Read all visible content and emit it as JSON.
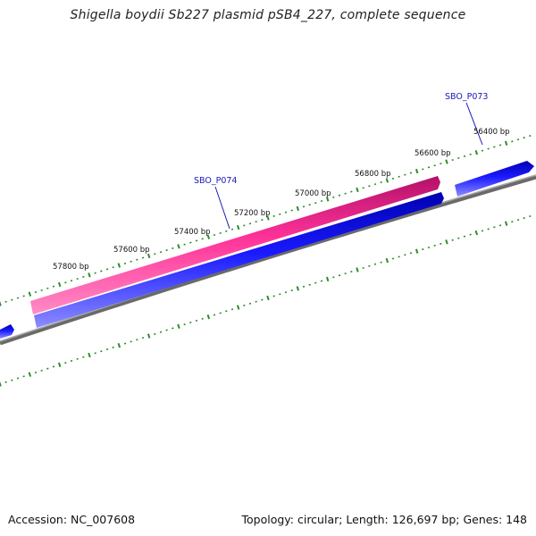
{
  "title": "Shigella boydii Sb227 plasmid pSB4_227, complete sequence",
  "footer": {
    "accession": "Accession: NC_007608",
    "summary": "Topology: circular; Length: 126,697 bp; Genes: 148"
  },
  "map": {
    "ticks": [
      {
        "bp": 56400,
        "label": "56400 bp"
      },
      {
        "bp": 56600,
        "label": "56600 bp"
      },
      {
        "bp": 56800,
        "label": "56800 bp"
      },
      {
        "bp": 57000,
        "label": "57000 bp"
      },
      {
        "bp": 57200,
        "label": "57200 bp"
      },
      {
        "bp": 57400,
        "label": "57400 bp"
      },
      {
        "bp": 57600,
        "label": "57600 bp"
      },
      {
        "bp": 57800,
        "label": "57800 bp"
      }
    ],
    "genes": [
      {
        "name": "SBO_P073"
      },
      {
        "name": "SBO_P074"
      }
    ],
    "colors": {
      "forward_gene": "#ff3399",
      "reverse_gene": "#1a1aff",
      "backbone": "#808080",
      "ticks": "#2e8b2e",
      "gene_label": "#1a1ab8"
    }
  }
}
